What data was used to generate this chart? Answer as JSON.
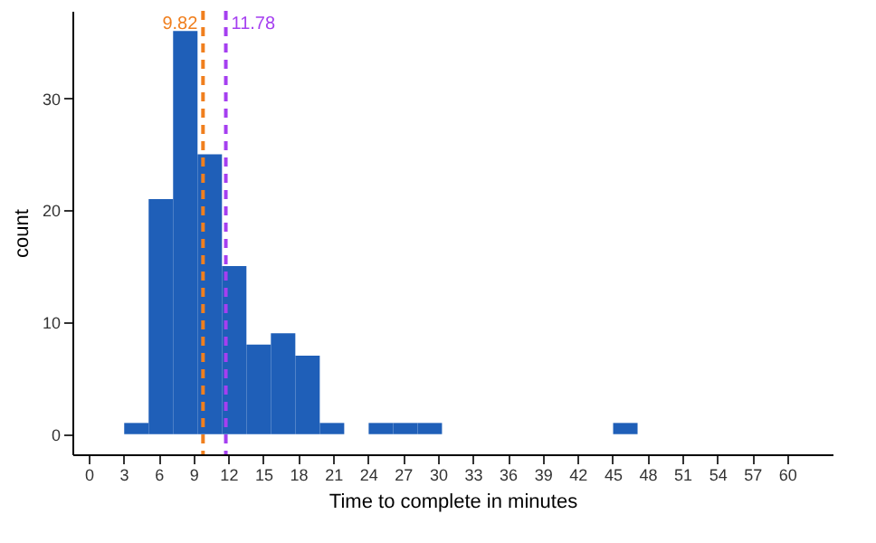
{
  "chart_data": {
    "type": "histogram",
    "xlabel": "Time to complete in minutes",
    "ylabel": "count",
    "bins": [
      3.05,
      5.15,
      7.25,
      9.35,
      11.45,
      13.55,
      15.65,
      17.75,
      19.85,
      21.95,
      24.05,
      26.15,
      28.25,
      30.35,
      32.45,
      34.55,
      36.65,
      38.75,
      40.85,
      42.95,
      45.05,
      47.15
    ],
    "values": [
      1,
      21,
      36,
      25,
      15,
      8,
      9,
      7,
      1,
      0,
      1,
      1,
      1,
      0,
      0,
      0,
      0,
      0,
      0,
      0,
      1
    ],
    "color": "#1f5fb8",
    "xlim": [
      -1.4,
      63.9
    ],
    "xticks": [
      0,
      3,
      6,
      9,
      12,
      15,
      18,
      21,
      24,
      27,
      30,
      33,
      36,
      39,
      42,
      45,
      48,
      51,
      54,
      57,
      60
    ],
    "ylim": [
      -1.8,
      37.8
    ],
    "yticks": [
      0,
      10,
      20,
      30
    ],
    "grid": false,
    "ref_lines": [
      {
        "axis": "x",
        "value": 9.82,
        "label": "9.82",
        "color": "#f07f1e",
        "line_style": "dashed"
      },
      {
        "axis": "x",
        "value": 11.78,
        "label": "11.78",
        "color": "#a53ff0",
        "line_style": "dashed"
      }
    ]
  }
}
